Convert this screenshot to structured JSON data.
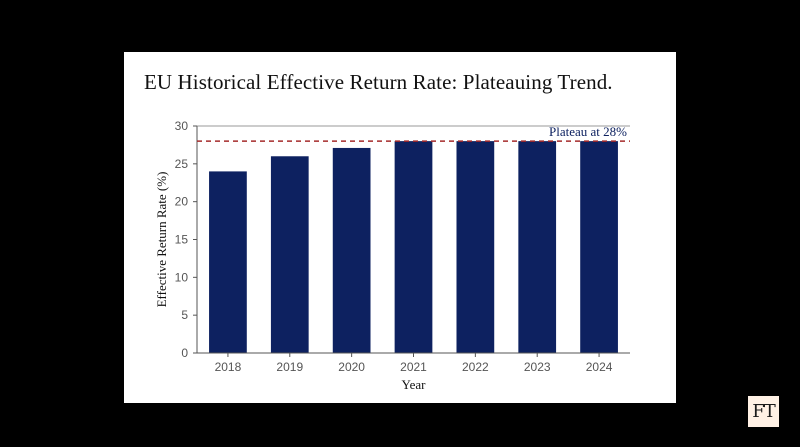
{
  "chart_data": {
    "type": "bar",
    "title": "EU Historical Effective Return Rate: Plateauing Trend.",
    "xlabel": "Year",
    "ylabel": "Effective Return Rate (%)",
    "categories": [
      "2018",
      "2019",
      "2020",
      "2021",
      "2022",
      "2023",
      "2024"
    ],
    "values": [
      24,
      26,
      27.1,
      28,
      28,
      28,
      28
    ],
    "ylim": [
      0,
      30
    ],
    "yticks": [
      0,
      5,
      10,
      15,
      20,
      25,
      30
    ],
    "grid": false,
    "bar_color": "#0d2160",
    "reference_line": {
      "value": 28,
      "label": "Plateau at 28%",
      "color": "#a52a2a",
      "style": "dashed"
    }
  },
  "watermark": {
    "text": "FT"
  }
}
